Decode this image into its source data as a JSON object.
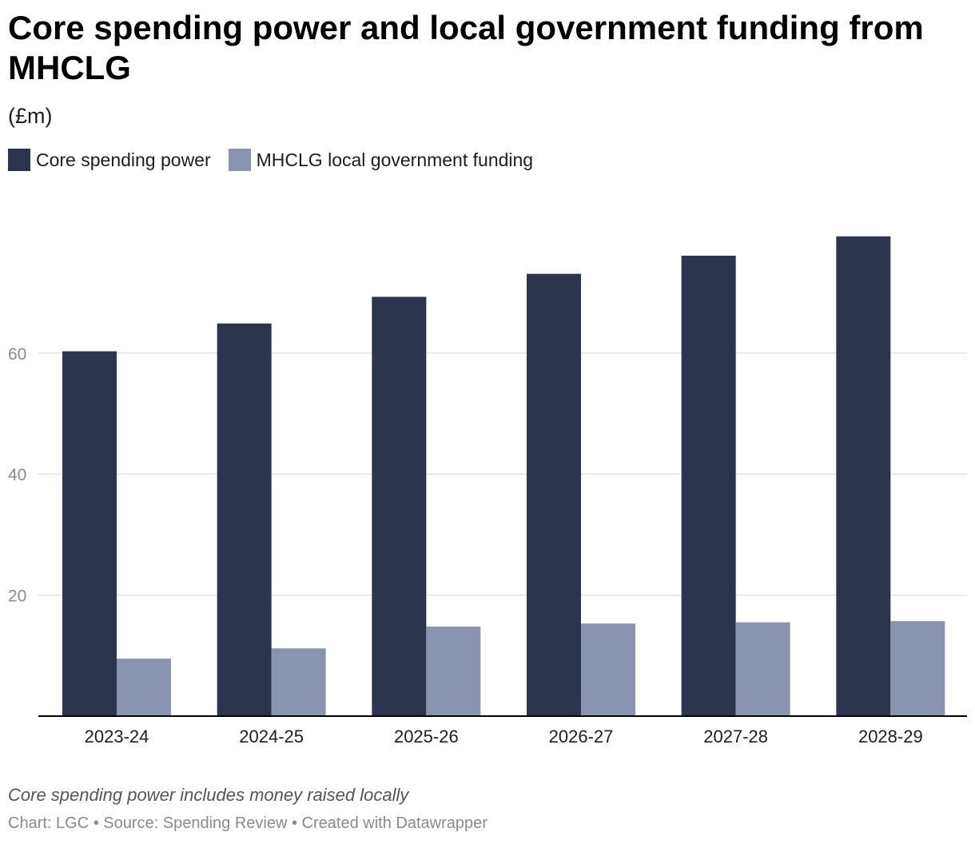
{
  "header": {
    "title": "Core spending power and local government funding from MHCLG",
    "subtitle": "(£m)"
  },
  "footer": {
    "note": "Core spending power includes money raised locally",
    "chart_by": "Chart: LGC",
    "source": "• Source: Spending Review",
    "created_with": "• Created with Datawrapper"
  },
  "colors": {
    "core": "#2c344e",
    "mhclg": "#8a93b0",
    "grid": "#e4e4e4",
    "axis": "#000000",
    "tick_label": "#8a8a8a"
  },
  "chart_data": {
    "type": "bar",
    "title": "Core spending power and local government funding from MHCLG",
    "subtitle": "(£m)",
    "categories": [
      "2023-24",
      "2024-25",
      "2025-26",
      "2026-27",
      "2027-28",
      "2028-29"
    ],
    "series": [
      {
        "name": "Core spending power",
        "color": "#2c344e",
        "values": [
          60.3,
          64.9,
          69.3,
          73.1,
          76.1,
          79.3
        ]
      },
      {
        "name": "MHCLG local government funding",
        "color": "#8a93b0",
        "values": [
          9.5,
          11.2,
          14.8,
          15.3,
          15.5,
          15.7
        ]
      }
    ],
    "y_ticks": [
      20,
      40,
      60
    ],
    "ylim": [
      0,
      80
    ],
    "grid": true,
    "legend": "top-left"
  }
}
